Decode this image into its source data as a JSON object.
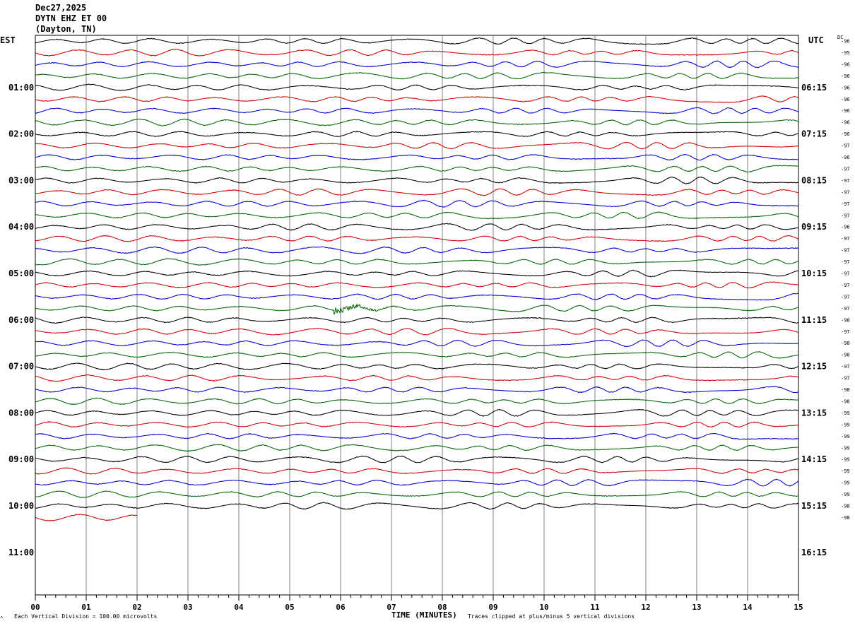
{
  "header": {
    "date": "Dec27,2025",
    "station": "DYTN EHZ ET 00",
    "location": "(Dayton, TN)"
  },
  "left_tz": "EST",
  "right_tz": "UTC",
  "dc_label": "DC",
  "footer": {
    "scale_note": "Each Vertical Division =  100.00 microvolts",
    "clip_note": "Traces clipped at plus/minus 5 vertical divisions",
    "corner_mark": "^"
  },
  "chart_data": {
    "type": "line",
    "xlabel": "TIME (MINUTES)",
    "x_ticks": [
      "00",
      "01",
      "02",
      "03",
      "04",
      "05",
      "06",
      "07",
      "08",
      "09",
      "10",
      "11",
      "12",
      "13",
      "14",
      "15"
    ],
    "xlim": [
      0,
      15
    ],
    "traces_per_hour": 4,
    "trace_minutes": 15,
    "trace_colors": [
      "#000000",
      "#cc0000",
      "#0000cc",
      "#006600"
    ],
    "left_hour_labels": [
      "01:00",
      "02:00",
      "03:00",
      "04:00",
      "05:00",
      "06:00",
      "07:00",
      "08:00",
      "09:00",
      "10:00",
      "11:00"
    ],
    "right_hour_labels": [
      "06:15",
      "07:15",
      "08:15",
      "09:15",
      "10:15",
      "11:15",
      "12:15",
      "13:15",
      "14:15",
      "15:15",
      "16:15"
    ],
    "dc_offsets": [
      "-96",
      "-95",
      "-96",
      "-96",
      "-96",
      "-96",
      "-96",
      "-96",
      "-96",
      "-97",
      "-96",
      "-97",
      "-97",
      "-97",
      "-97",
      "-97",
      "-96",
      "-97",
      "-97",
      "-97",
      "-97",
      "-97",
      "-97",
      "-97",
      "-98",
      "-97",
      "-98",
      "-98",
      "-97",
      "-97",
      "-98",
      "-98",
      "-99",
      "-99",
      "-99",
      "-99",
      "-99",
      "-99",
      "-99",
      "-99",
      "-98",
      "-98"
    ],
    "total_traces": 42,
    "full_traces": 41,
    "last_trace_minutes": 2,
    "events": [
      {
        "trace_index": 23,
        "minute": 5.85,
        "label": ""
      }
    ]
  }
}
